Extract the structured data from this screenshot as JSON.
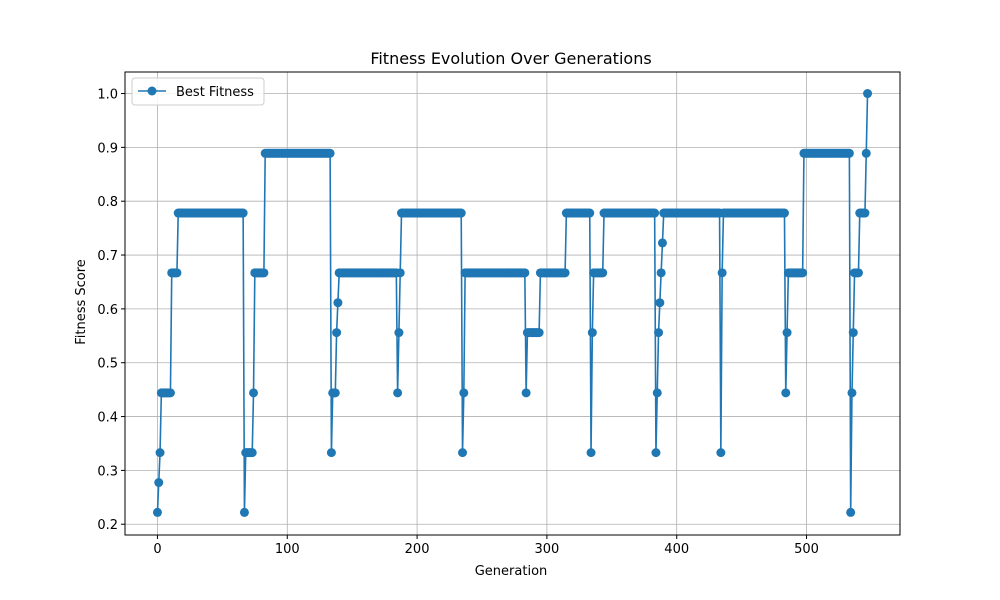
{
  "chart_data": {
    "type": "line",
    "title": "Fitness Evolution Over Generations",
    "xlabel": "Generation",
    "ylabel": "Fitness Score",
    "xlim": [
      -25,
      572
    ],
    "ylim": [
      0.18,
      1.04
    ],
    "xticks": [
      0,
      100,
      200,
      300,
      400,
      500
    ],
    "yticks": [
      0.2,
      0.3,
      0.4,
      0.5,
      0.6,
      0.7,
      0.8,
      0.9,
      1.0
    ],
    "ytick_labels": [
      "0.2",
      "0.3",
      "0.4",
      "0.5",
      "0.6",
      "0.7",
      "0.8",
      "0.9",
      "1.0"
    ],
    "grid": true,
    "legend_position": "top-left",
    "series": [
      {
        "name": "Best Fitness",
        "color": "#1f77b4",
        "marker": "circle",
        "segments": [
          [
            0,
            0.222
          ],
          [
            2,
            0.333
          ],
          [
            3,
            0.444
          ],
          [
            10,
            0.444
          ],
          [
            11,
            0.667
          ],
          [
            15,
            0.667
          ],
          [
            16,
            0.778
          ],
          [
            66,
            0.778
          ],
          [
            67,
            0.222
          ],
          [
            68,
            0.333
          ],
          [
            73,
            0.333
          ],
          [
            74,
            0.444
          ],
          [
            75,
            0.667
          ],
          [
            82,
            0.667
          ],
          [
            83,
            0.889
          ],
          [
            133,
            0.889
          ],
          [
            134,
            0.333
          ],
          [
            135,
            0.444
          ],
          [
            137,
            0.444
          ],
          [
            138,
            0.556
          ],
          [
            140,
            0.667
          ],
          [
            184,
            0.667
          ],
          [
            185,
            0.444
          ],
          [
            186,
            0.556
          ],
          [
            187,
            0.667
          ],
          [
            188,
            0.778
          ],
          [
            234,
            0.778
          ],
          [
            235,
            0.333
          ],
          [
            236,
            0.444
          ],
          [
            237,
            0.667
          ],
          [
            283,
            0.667
          ],
          [
            284,
            0.444
          ],
          [
            285,
            0.556
          ],
          [
            294,
            0.556
          ],
          [
            295,
            0.667
          ],
          [
            314,
            0.667
          ],
          [
            315,
            0.778
          ],
          [
            333,
            0.778
          ],
          [
            334,
            0.333
          ],
          [
            335,
            0.556
          ],
          [
            336,
            0.667
          ],
          [
            343,
            0.667
          ],
          [
            344,
            0.778
          ],
          [
            383,
            0.778
          ],
          [
            384,
            0.333
          ],
          [
            385,
            0.444
          ],
          [
            386,
            0.556
          ],
          [
            388,
            0.667
          ],
          [
            390,
            0.778
          ],
          [
            433,
            0.778
          ],
          [
            434,
            0.333
          ],
          [
            435,
            0.667
          ],
          [
            436,
            0.778
          ],
          [
            483,
            0.778
          ],
          [
            484,
            0.444
          ],
          [
            485,
            0.556
          ],
          [
            486,
            0.667
          ],
          [
            497,
            0.667
          ],
          [
            498,
            0.889
          ],
          [
            533,
            0.889
          ],
          [
            534,
            0.222
          ],
          [
            535,
            0.444
          ],
          [
            536,
            0.556
          ],
          [
            537,
            0.667
          ],
          [
            540,
            0.667
          ],
          [
            541,
            0.778
          ],
          [
            545,
            0.778
          ],
          [
            547,
            1.0
          ]
        ]
      }
    ]
  }
}
